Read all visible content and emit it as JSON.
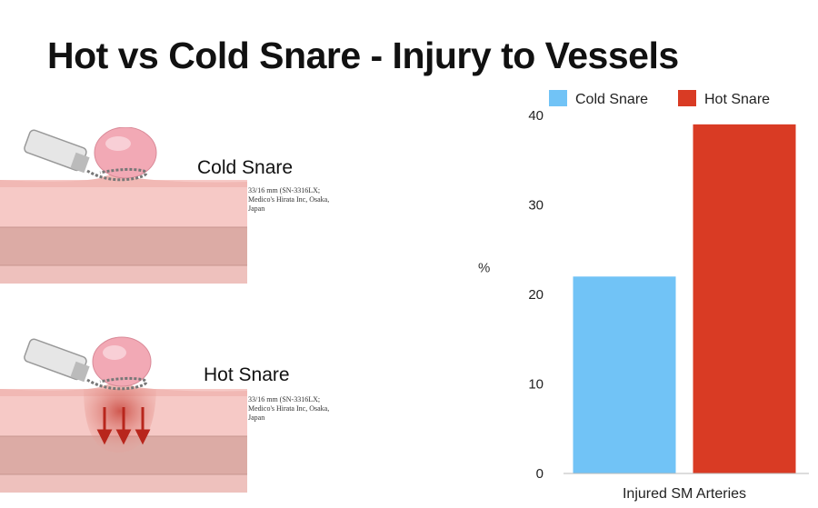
{
  "slide": {
    "title": "Hot vs Cold Snare - Injury to Vessels"
  },
  "panels": {
    "cold": {
      "label": "Cold Snare",
      "caption": [
        "33/16 mm (SN-3316LX;",
        "Medico's Hirata Inc, Osaka,",
        "Japan"
      ]
    },
    "hot": {
      "label": "Hot Snare",
      "caption": [
        "33/16 mm (SN-3316LX;",
        "Medico's Hirata Inc, Osaka,",
        "Japan"
      ]
    }
  },
  "colors": {
    "cold": "#71c3f6",
    "hot": "#d93b24",
    "tissue_top": "#f6c9c6",
    "tissue_mid": "#e9b1ab",
    "tissue_deep": "#d99c96",
    "polyp": "#f2a9b5",
    "burn": "#c9443a"
  },
  "chart_data": {
    "type": "bar",
    "categories": [
      "Injured SM Arteries"
    ],
    "series": [
      {
        "name": "Cold Snare",
        "values": [
          22
        ]
      },
      {
        "name": "Hot Snare",
        "values": [
          39
        ]
      }
    ],
    "ylabel": "%",
    "ylim": [
      0,
      40
    ],
    "yticks": [
      0,
      10,
      20,
      30,
      40
    ],
    "legend": "top"
  }
}
